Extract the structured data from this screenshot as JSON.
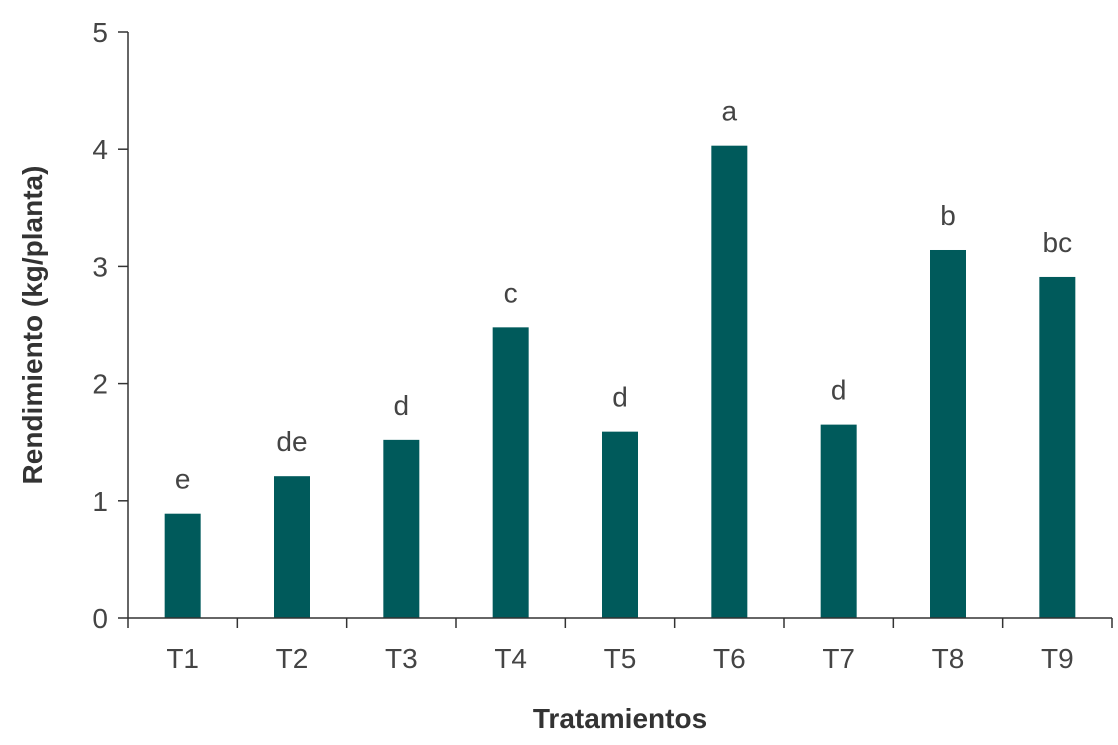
{
  "chart_data": {
    "type": "bar",
    "categories": [
      "T1",
      "T2",
      "T3",
      "T4",
      "T5",
      "T6",
      "T7",
      "T8",
      "T9"
    ],
    "values": [
      0.89,
      1.21,
      1.52,
      2.48,
      1.59,
      4.03,
      1.65,
      3.14,
      2.91
    ],
    "significance_letters": [
      "e",
      "de",
      "d",
      "c",
      "d",
      "a",
      "d",
      "b",
      "bc"
    ],
    "xlabel": "Tratamientos",
    "ylabel": "Rendimiento (kg/planta)",
    "ylim": [
      0,
      5
    ],
    "yticks": [
      0,
      1,
      2,
      3,
      4,
      5
    ],
    "grid": false,
    "bar_color": "#005a5b"
  }
}
